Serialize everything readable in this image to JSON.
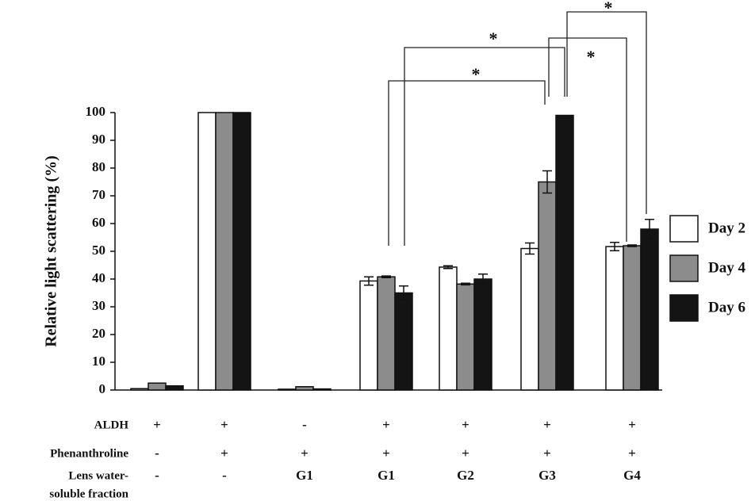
{
  "chart_data": {
    "type": "bar",
    "y_label": "Relative light scattering (%)",
    "categories": [
      null,
      null,
      null,
      null,
      null,
      null,
      null
    ],
    "series": [
      {
        "name": "Day 2",
        "color": "#ffffff",
        "values": [
          0.5,
          100,
          0.3,
          39.3,
          44.3,
          51,
          51.7
        ],
        "errors": [
          0,
          0,
          0,
          1.5,
          0.5,
          2,
          1.5
        ]
      },
      {
        "name": "Day 4",
        "color": "#8c8c8c",
        "values": [
          2.5,
          100,
          1.2,
          40.8,
          38.2,
          75,
          52
        ],
        "errors": [
          0,
          0,
          0,
          0.3,
          0.3,
          4,
          0.3
        ]
      },
      {
        "name": "Day 6",
        "color": "#141414",
        "values": [
          1.5,
          100,
          0.4,
          35,
          40,
          99,
          58
        ],
        "errors": [
          0,
          0,
          0,
          2.5,
          1.8,
          0,
          3.5
        ]
      }
    ],
    "ylim": [
      0,
      100
    ],
    "yticks": [
      0,
      10,
      20,
      30,
      40,
      50,
      60,
      70,
      80,
      90,
      100
    ],
    "legend": "right",
    "annotations": [
      "*",
      "*",
      "*",
      "*"
    ],
    "conditions": [
      {
        "label": [
          "ALDH"
        ],
        "values": [
          "+",
          "+",
          "-",
          "+",
          "+",
          "+",
          "+"
        ]
      },
      {
        "label": [
          "Phenanthroline"
        ],
        "values": [
          "-",
          "+",
          "+",
          "+",
          "+",
          "+",
          "+"
        ]
      },
      {
        "label": [
          "Lens water-",
          "soluble fraction"
        ],
        "values": [
          "-",
          "-",
          "G1",
          "G1",
          "G2",
          "G3",
          "G4"
        ]
      }
    ]
  }
}
